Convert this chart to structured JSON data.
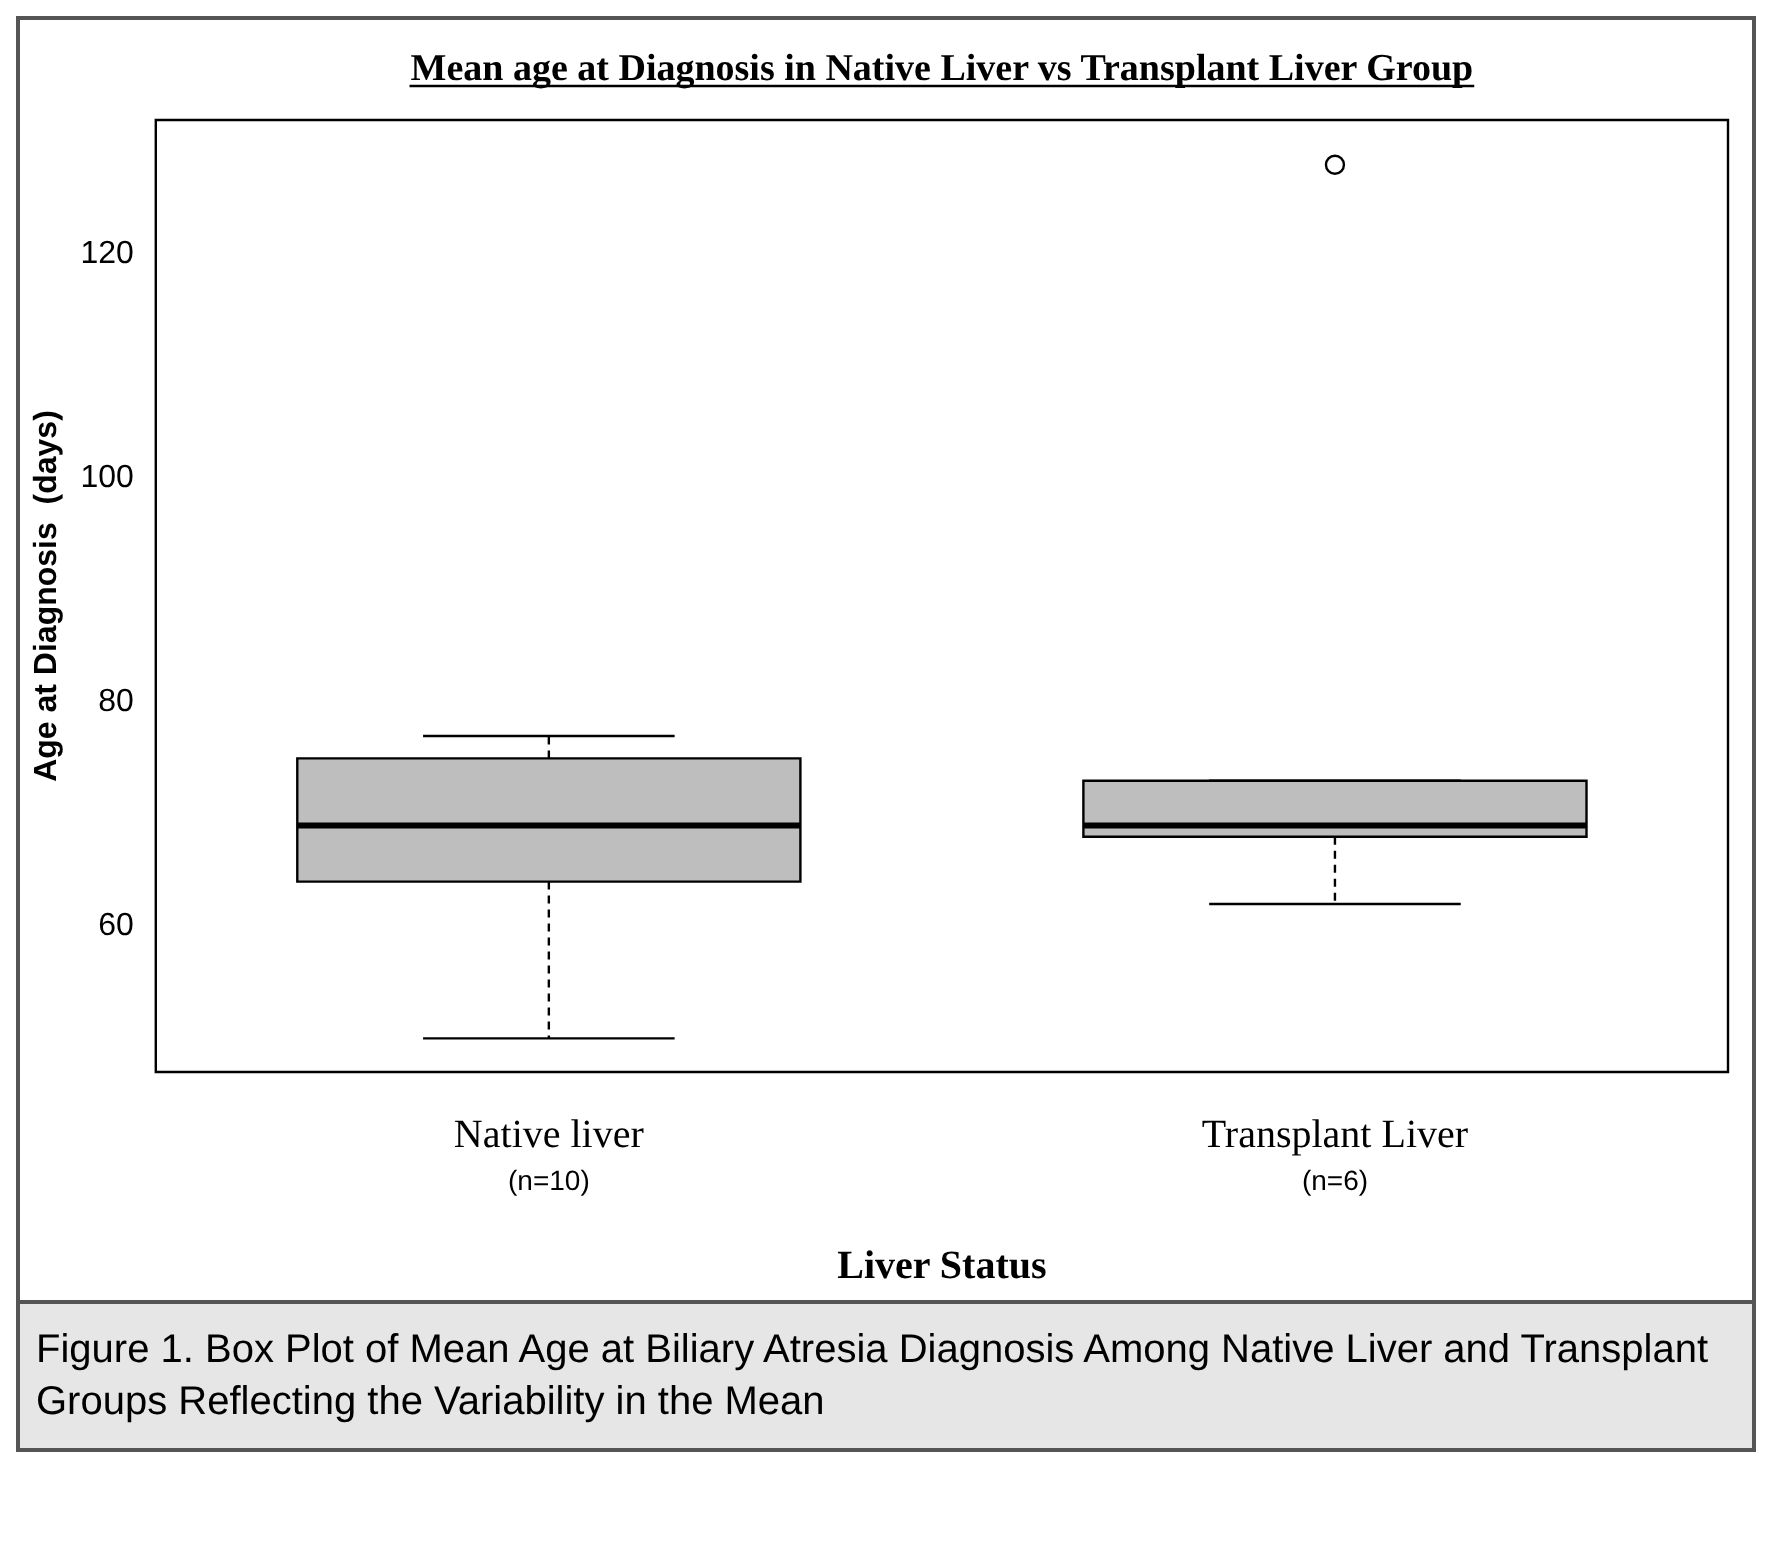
{
  "chart_data": {
    "type": "box",
    "title": "Mean age at Diagnosis in Native Liver vs Transplant Liver Group",
    "xlabel": "Liver Status",
    "ylabel": "Age at Diagnosis  (days)",
    "categories": [
      "Native liver",
      "Transplant Liver"
    ],
    "boxes": [
      {
        "low": 50,
        "q1": 64,
        "median": 69,
        "q3": 75,
        "high": 77
      },
      {
        "low": 62,
        "q1": 68,
        "median": 69,
        "q3": 73,
        "high": 73,
        "outliers": [
          128
        ]
      }
    ],
    "color": "#bebebe",
    "ylim": [
      47,
      132
    ],
    "yticks": [
      60,
      80,
      100,
      120
    ],
    "grid": false,
    "legend": false,
    "annotations": [
      "(n=10)",
      "(n=6)",
      "Figure 1. Box Plot of Mean Age at Biliary Atresia Diagnosis Among Native Liver and Transplant Groups Reflecting the Variability in the Mean"
    ]
  }
}
